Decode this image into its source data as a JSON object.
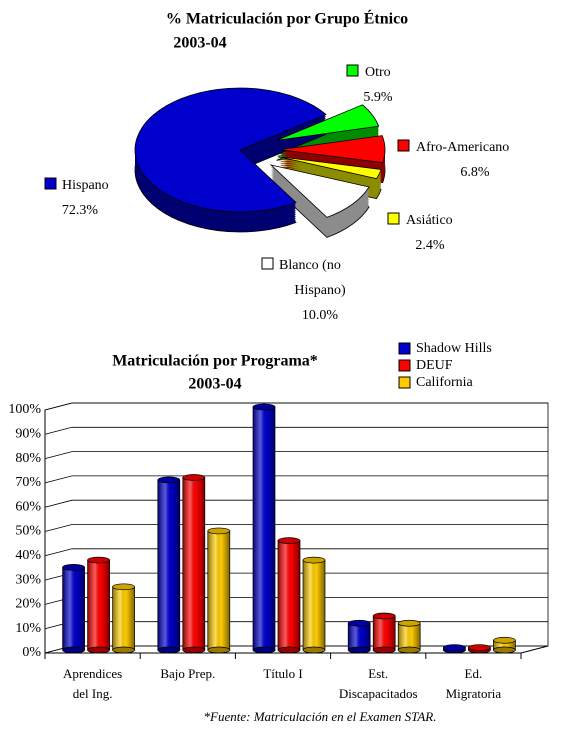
{
  "chart_data": [
    {
      "type": "pie",
      "title": "% Matriculación por Grupo Étnico",
      "subtitle": "2003-04",
      "labels": [
        [
          "Otro"
        ],
        [
          "Afro-Americano"
        ],
        [
          "Asiático"
        ],
        [
          "Blanco (no",
          "Hispano)"
        ],
        [
          "Hispano"
        ]
      ],
      "values": [
        5.9,
        6.8,
        2.4,
        10.0,
        72.3
      ],
      "value_labels": [
        "5.9%",
        "6.8%",
        "2.4%",
        "10.0%",
        "72.3%"
      ],
      "colors": [
        "#00ff00",
        "#ff0000",
        "#ffff00",
        "#ffffff",
        "#0000cc"
      ]
    },
    {
      "type": "bar",
      "title": "Matriculación por Programa*",
      "subtitle": "2003-04",
      "categories": [
        [
          "Aprendices",
          "del Ing."
        ],
        [
          "Bajo Prep."
        ],
        [
          "Título I"
        ],
        [
          "Est.",
          "Discapacitados"
        ],
        [
          "Ed.",
          "Migratoria"
        ]
      ],
      "series": [
        {
          "name": "Shadow Hills",
          "color": "#0000cc",
          "values": [
            34,
            70,
            100,
            11,
            1
          ]
        },
        {
          "name": "DEUF",
          "color": "#ff0000",
          "values": [
            37,
            71,
            45,
            14,
            1
          ]
        },
        {
          "name": "California",
          "color": "#ffcc00",
          "values": [
            26,
            49,
            37,
            11,
            4
          ]
        }
      ],
      "ylim": [
        0,
        100
      ],
      "yticks": [
        {
          "value": 0,
          "label": "0%"
        },
        {
          "value": 10,
          "label": "10%"
        },
        {
          "value": 20,
          "label": "20%"
        },
        {
          "value": 30,
          "label": "30%"
        },
        {
          "value": 40,
          "label": "40%"
        },
        {
          "value": 50,
          "label": "50%"
        },
        {
          "value": 60,
          "label": "60%"
        },
        {
          "value": 70,
          "label": "70%"
        },
        {
          "value": 80,
          "label": "80%"
        },
        {
          "value": 90,
          "label": "90%"
        },
        {
          "value": 100,
          "label": "100%"
        }
      ],
      "grid": true,
      "legend": "top-right",
      "note": "*Fuente: Matriculación en el Examen STAR."
    }
  ]
}
